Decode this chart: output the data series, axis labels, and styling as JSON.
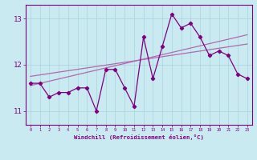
{
  "xlabel": "Windchill (Refroidissement éolien,°C)",
  "x_hours": [
    0,
    1,
    2,
    3,
    4,
    5,
    6,
    7,
    8,
    9,
    10,
    11,
    12,
    13,
    14,
    15,
    16,
    17,
    18,
    19,
    20,
    21,
    22,
    23
  ],
  "windchill": [
    11.6,
    11.6,
    11.3,
    11.4,
    11.4,
    11.5,
    11.5,
    11.0,
    11.9,
    11.9,
    11.5,
    11.1,
    12.6,
    11.7,
    12.4,
    13.1,
    12.8,
    12.9,
    12.6,
    12.2,
    12.3,
    12.2,
    11.8,
    11.7
  ],
  "trend_line1": [
    11.55,
    12.65
  ],
  "trend_line2": [
    11.75,
    12.45
  ],
  "color_main": "#800080",
  "color_trend": "#b06ab0",
  "bg_color": "#c8eaf0",
  "grid_color": "#a8d4dc",
  "axis_color": "#800080",
  "tick_color": "#800080",
  "ylim": [
    10.7,
    13.3
  ],
  "yticks": [
    11,
    12,
    13
  ],
  "xlim": [
    -0.5,
    23.5
  ]
}
